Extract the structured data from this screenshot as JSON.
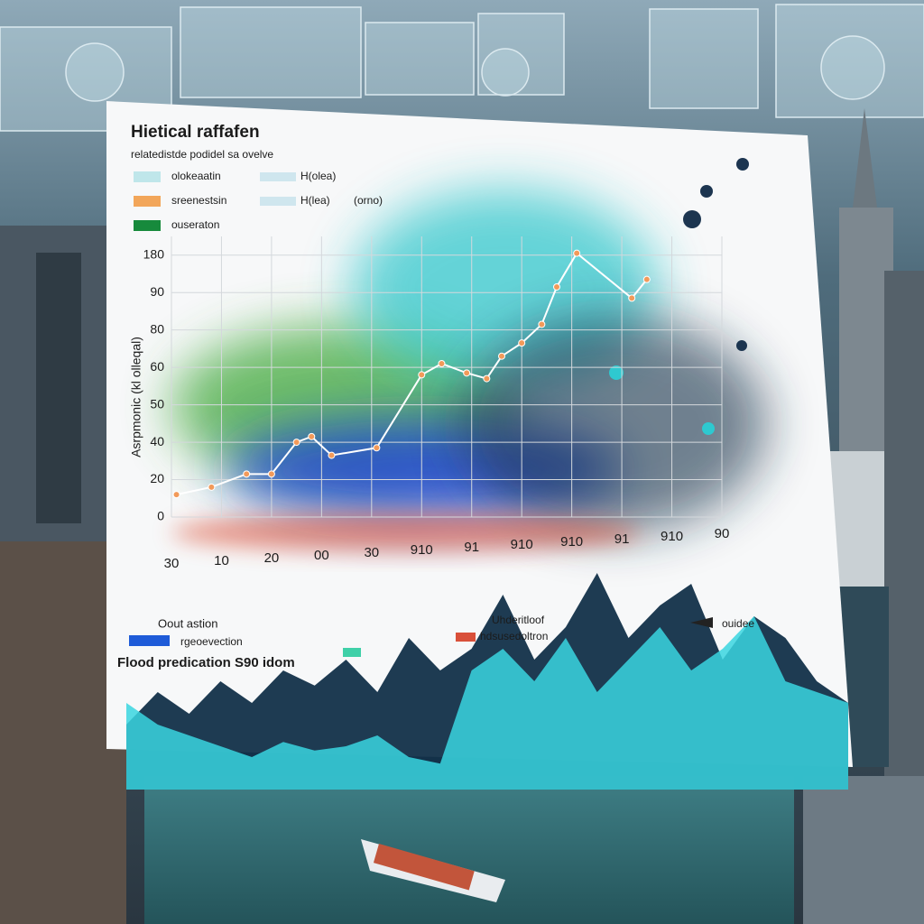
{
  "chart_data": [
    {
      "type": "line",
      "title": "Hietical raffafen",
      "subtitle": "relatedistde podidel sa ovelve",
      "y_label": "Asrpmonic (kl olleqal)",
      "legend": [
        {
          "label": "olokeaatin",
          "note": "H(olea)",
          "color": "#bfe6ea"
        },
        {
          "label": "sreenestsin",
          "note": "H(lea)",
          "extra": "(orno)",
          "color": "#f2a65a"
        },
        {
          "label": "ouseraton",
          "color": "#178a3c"
        }
      ],
      "x": [
        1,
        8,
        15,
        20,
        25,
        28,
        32,
        41,
        50,
        54,
        59,
        63,
        66,
        70,
        74,
        77,
        81,
        92,
        95
      ],
      "values": [
        12,
        16,
        23,
        23,
        40,
        43,
        33,
        37,
        76,
        82,
        77,
        74,
        86,
        93,
        103,
        123,
        141,
        117,
        127
      ],
      "color": "#ffffff",
      "marker_color": "#f29a5a",
      "xlim": [
        0,
        110
      ],
      "xticks": [
        {
          "value": 0,
          "label": "30"
        },
        10,
        20,
        {
          "value": 30,
          "label": "00"
        },
        {
          "value": 40,
          "label": "30"
        },
        {
          "value": 50,
          "label": "910"
        },
        {
          "value": 60,
          "label": "91"
        },
        {
          "value": 70,
          "label": "910"
        },
        {
          "value": 80,
          "label": "910"
        },
        {
          "value": 90,
          "label": "91"
        },
        {
          "value": 100,
          "label": "910"
        },
        {
          "value": 110,
          "label": "90"
        }
      ],
      "ylim": [
        0,
        150
      ],
      "yticks": [
        0,
        20,
        40,
        {
          "value": 60,
          "label": "50"
        },
        {
          "value": 80,
          "label": "60"
        },
        {
          "value": 100,
          "label": "80"
        },
        {
          "value": 120,
          "label": "90"
        },
        {
          "value": 140,
          "label": "180"
        }
      ],
      "grid": true
    },
    {
      "type": "area",
      "title": "Flood predication S90 idom",
      "label": "Oout astion",
      "legend": [
        {
          "label": "rgeoevection",
          "color": "#1e5bd8"
        },
        {
          "label": "Uhderitloof"
        },
        {
          "label": "hdsusedoltron",
          "color": "#d9503a"
        },
        {
          "label": "ouidee",
          "color": "#222222"
        }
      ],
      "series": [
        {
          "color": "#123049",
          "values": [
            30,
            45,
            35,
            50,
            40,
            55,
            48,
            60,
            45,
            70,
            55,
            65,
            90,
            60,
            75,
            100,
            70,
            85,
            95,
            60,
            80,
            70,
            50,
            40
          ]
        },
        {
          "color": "#3ad6e0",
          "values": [
            40,
            30,
            25,
            20,
            15,
            22,
            18,
            20,
            25,
            15,
            12,
            55,
            65,
            50,
            70,
            45,
            60,
            75,
            55,
            65,
            80,
            50,
            45,
            40
          ]
        }
      ]
    }
  ]
}
